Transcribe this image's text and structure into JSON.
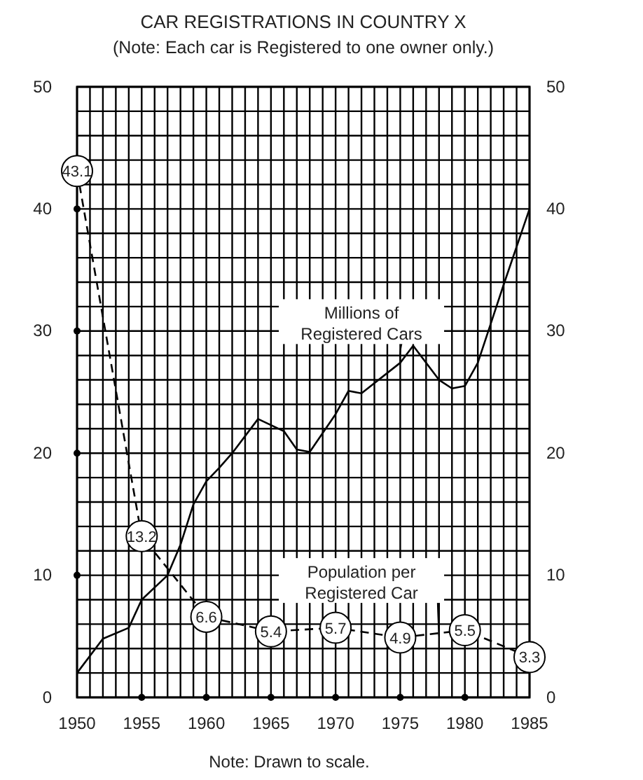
{
  "chart_data": {
    "type": "line",
    "title": "CAR REGISTRATIONS IN COUNTRY X",
    "subtitle": "(Note: Each car is Registered to one owner only.)",
    "annotations": [
      "Note:  Drawn to scale."
    ],
    "xlim": [
      1950,
      1985
    ],
    "xticks": [
      1950,
      {
        "value": 1951,
        "label": null
      },
      {
        "value": 1952,
        "label": null
      },
      {
        "value": 1953,
        "label": null
      },
      {
        "value": 1954,
        "label": null
      },
      1955,
      {
        "value": 1956,
        "label": null
      },
      {
        "value": 1957,
        "label": null
      },
      {
        "value": 1958,
        "label": null
      },
      {
        "value": 1959,
        "label": null
      },
      1960,
      {
        "value": 1961,
        "label": null
      },
      {
        "value": 1962,
        "label": null
      },
      {
        "value": 1963,
        "label": null
      },
      {
        "value": 1964,
        "label": null
      },
      1965,
      {
        "value": 1966,
        "label": null
      },
      {
        "value": 1967,
        "label": null
      },
      {
        "value": 1968,
        "label": null
      },
      {
        "value": 1969,
        "label": null
      },
      1970,
      {
        "value": 1971,
        "label": null
      },
      {
        "value": 1972,
        "label": null
      },
      {
        "value": 1973,
        "label": null
      },
      {
        "value": 1974,
        "label": null
      },
      1975,
      {
        "value": 1976,
        "label": null
      },
      {
        "value": 1977,
        "label": null
      },
      {
        "value": 1978,
        "label": null
      },
      {
        "value": 1979,
        "label": null
      },
      1980,
      {
        "value": 1981,
        "label": null
      },
      {
        "value": 1982,
        "label": null
      },
      {
        "value": 1983,
        "label": null
      },
      {
        "value": 1984,
        "label": null
      },
      1985
    ],
    "ylim": [
      0,
      50
    ],
    "yticks": [
      0,
      {
        "value": 2,
        "label": null
      },
      {
        "value": 4,
        "label": null
      },
      {
        "value": 6,
        "label": null
      },
      {
        "value": 8,
        "label": null
      },
      10,
      {
        "value": 12,
        "label": null
      },
      {
        "value": 14,
        "label": null
      },
      {
        "value": 16,
        "label": null
      },
      {
        "value": 18,
        "label": null
      },
      20,
      {
        "value": 22,
        "label": null
      },
      {
        "value": 24,
        "label": null
      },
      {
        "value": 26,
        "label": null
      },
      {
        "value": 28,
        "label": null
      },
      30,
      {
        "value": 32,
        "label": null
      },
      {
        "value": 34,
        "label": null
      },
      {
        "value": 36,
        "label": null
      },
      {
        "value": 38,
        "label": null
      },
      40,
      {
        "value": 42,
        "label": null
      },
      {
        "value": 44,
        "label": null
      },
      {
        "value": 46,
        "label": null
      },
      {
        "value": 48,
        "label": null
      },
      50
    ],
    "y2lim": [
      0,
      50
    ],
    "y2ticks": [
      0,
      10,
      20,
      30,
      40,
      50
    ],
    "grid": true,
    "series": [
      {
        "name": "Millions of Registered Cars",
        "color": "#000000",
        "line_style": "solid",
        "marker": "none",
        "x": [
          1950,
          1952,
          1954,
          1955,
          1957,
          1958,
          1959,
          1960,
          1961,
          1962,
          1964,
          1966,
          1967,
          1968,
          1970,
          1971,
          1972,
          1975,
          1976,
          1978,
          1979,
          1980,
          1981,
          1982,
          1983,
          1985
        ],
        "values": [
          2,
          4.8,
          5.7,
          8,
          10,
          12.5,
          15.8,
          17.7,
          18.8,
          20,
          22.8,
          21.8,
          20.3,
          20.1,
          23.2,
          25.1,
          24.9,
          27.4,
          28.8,
          26,
          25.3,
          25.5,
          27.4,
          30.6,
          33.8,
          40
        ]
      },
      {
        "name": "Population per Registered Car",
        "color": "#000000",
        "line_style": "dashed",
        "marker": "circle",
        "data_labels": true,
        "x": [
          1950,
          1955,
          1960,
          1965,
          1970,
          1975,
          1980,
          1985
        ],
        "values": [
          43.1,
          13.2,
          6.6,
          5.4,
          5.7,
          4.9,
          5.5,
          3.3
        ]
      }
    ]
  }
}
